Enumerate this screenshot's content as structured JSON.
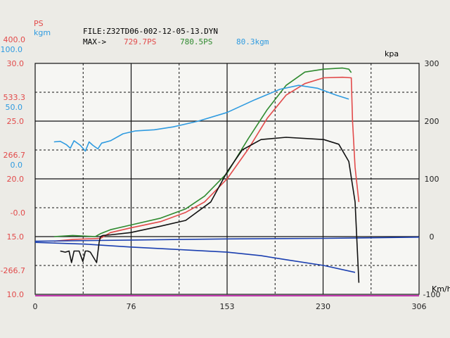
{
  "colors": {
    "paper": "#ecebe6",
    "plot_bg": "#f6f6f3",
    "ps": "#e24a4a",
    "green": "#2f8a2f",
    "kgm": "#2f9be0",
    "kpa": "#1b3fb0",
    "black": "#111111",
    "text": "#222222",
    "magenta": "#c23ab0"
  },
  "header": {
    "file_label": "FILE:Z32TD06-002-12-05-13.DYN",
    "max_label": "MAX->",
    "max_ps_red": "729.7PS",
    "max_ps_green": "780.5PS",
    "max_kgm": "80.3kgm"
  },
  "left_axis": {
    "ps_label": "PS",
    "kgm_label": "kgm",
    "rows": [
      {
        "ps": "400.0",
        "kgm": "100.0",
        "aux": "30.0"
      },
      {
        "ps": "533.3",
        "kgm": "50.0",
        "aux": "25.0"
      },
      {
        "ps": "266.7",
        "kgm": "0.0",
        "aux": "20.0"
      },
      {
        "ps": "-0.0",
        "kgm": "",
        "aux": "15.0"
      },
      {
        "ps": "-266.7",
        "kgm": "",
        "aux": "10.0"
      }
    ]
  },
  "right_axis": {
    "label": "kpa",
    "ticks": [
      "300",
      "200",
      "100",
      "0",
      "-100"
    ]
  },
  "x_axis": {
    "ticks": [
      "0",
      "76",
      "153",
      "230",
      "306"
    ],
    "unit": "Km/h"
  },
  "chart_data": {
    "type": "line",
    "x_label": "Km/h",
    "xlim": [
      0,
      306
    ],
    "right_axis_label": "kpa",
    "right_ylim": [
      -100,
      300
    ],
    "grid": true,
    "series": [
      {
        "name": "729.7PS",
        "color_key": "ps",
        "x": [
          15,
          30,
          52,
          60,
          76,
          100,
          120,
          135,
          153,
          170,
          185,
          200,
          215,
          230,
          245,
          252,
          253,
          255,
          258
        ],
        "y": [
          -8,
          -5,
          -3,
          7,
          15,
          26,
          42,
          60,
          100,
          152,
          205,
          245,
          265,
          275,
          276,
          275,
          200,
          120,
          60
        ]
      },
      {
        "name": "780.5PS",
        "color_key": "green",
        "x": [
          15,
          30,
          48,
          52,
          60,
          76,
          100,
          120,
          135,
          153,
          170,
          185,
          200,
          215,
          230,
          245,
          250,
          252
        ],
        "y": [
          0,
          2,
          0,
          5,
          12,
          20,
          32,
          48,
          70,
          110,
          170,
          220,
          262,
          285,
          290,
          292,
          290,
          284
        ]
      },
      {
        "name": "80.3kgm",
        "color_key": "kgm",
        "x": [
          15,
          20,
          25,
          28,
          31,
          36,
          40,
          43,
          46,
          50,
          53,
          55,
          60,
          70,
          80,
          95,
          110,
          130,
          153,
          175,
          195,
          210,
          225,
          240,
          250
        ],
        "y": [
          164,
          165,
          159,
          153,
          166,
          158,
          148,
          164,
          158,
          152,
          162,
          163,
          166,
          178,
          183,
          185,
          190,
          200,
          215,
          237,
          255,
          262,
          257,
          245,
          238
        ]
      },
      {
        "name": "kpa",
        "color_key": "kpa",
        "x": [
          0,
          40,
          76,
          120,
          153,
          180,
          200,
          230,
          255
        ],
        "y": [
          -10,
          -13,
          -18,
          -23,
          -27,
          -33,
          -40,
          -50,
          -62
        ]
      },
      {
        "name": "",
        "color_key": "kpa",
        "x": [
          0,
          76,
          153,
          230,
          306
        ],
        "y": [
          -8,
          -6,
          -4,
          -3,
          -1
        ]
      },
      {
        "name": "",
        "color_key": "black",
        "x": [
          20,
          24,
          27,
          29,
          31,
          35,
          38,
          40,
          42,
          44,
          49,
          51,
          52,
          54,
          60,
          76,
          100,
          120,
          140,
          153,
          165,
          180,
          200,
          230,
          242,
          250,
          255,
          258
        ],
        "y": [
          -25,
          -27,
          -25,
          -45,
          -25,
          -25,
          -43,
          -25,
          -25,
          -27,
          -45,
          -10,
          0,
          2,
          3,
          7,
          18,
          28,
          60,
          112,
          150,
          168,
          172,
          168,
          160,
          130,
          60,
          -80
        ]
      }
    ]
  }
}
